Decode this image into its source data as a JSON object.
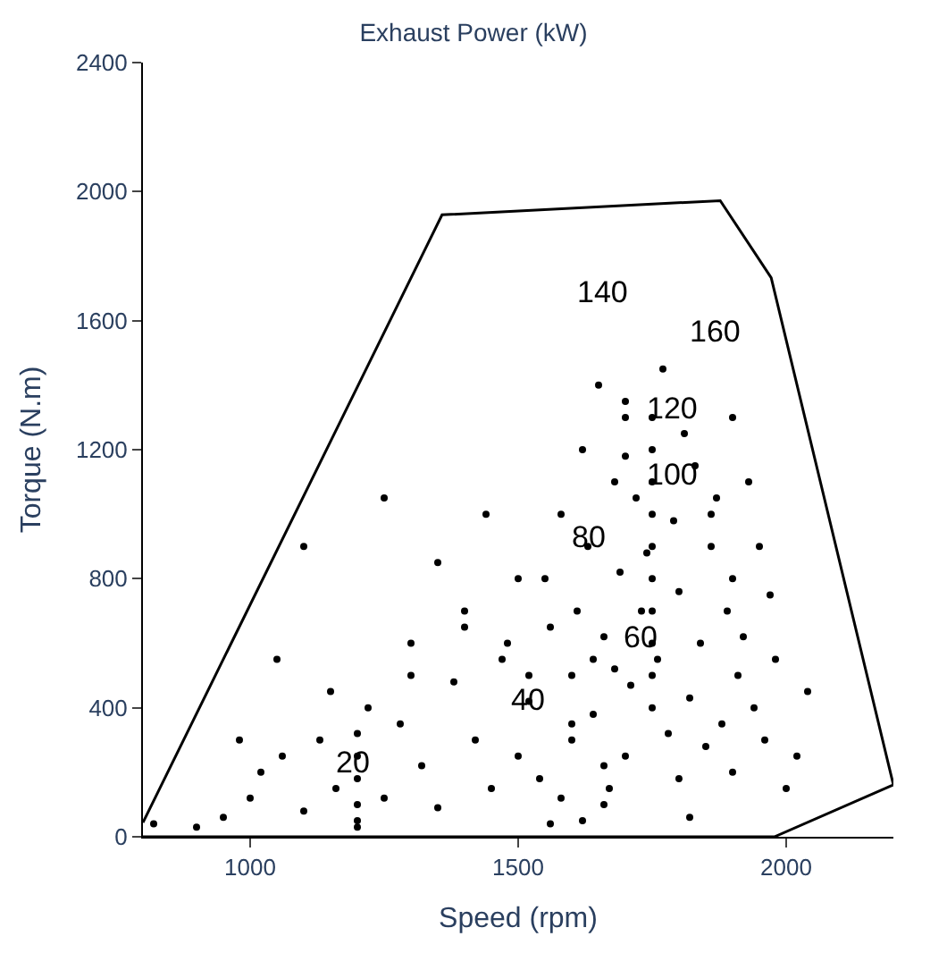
{
  "chart_data": {
    "type": "scatter",
    "title": "Exhaust Power (kW)",
    "xlabel": "Speed (rpm)",
    "ylabel": "Torque (N.m)",
    "xlim": [
      800,
      2200
    ],
    "ylim": [
      0,
      2400
    ],
    "xticks": [
      1000,
      1500,
      2000
    ],
    "yticks": [
      0,
      400,
      800,
      1200,
      1600,
      2000,
      2400
    ],
    "marker": "circle",
    "series": [
      {
        "type": "line",
        "marker": "none",
        "color": "#000000",
        "x": [
          800,
          1358,
          1877,
          1972,
          2200,
          1978,
          800
        ],
        "values": [
          44,
          1928,
          1972,
          1733,
          161,
          0,
          0
        ]
      },
      {
        "color": "#000000",
        "x": [
          820,
          900,
          950,
          1000,
          1020,
          1060,
          1100,
          1130,
          1160,
          1200,
          1200,
          1200,
          1200,
          1200,
          1200,
          1220,
          1250,
          1280,
          1300,
          1320,
          1350,
          1380,
          1400,
          1420,
          1450,
          1470,
          1500,
          1500,
          1520,
          1540,
          1560,
          1580,
          1600,
          1600,
          1610,
          1620,
          1630,
          1640,
          1650,
          1660,
          1670,
          1680,
          1690,
          1700,
          1700,
          1710,
          1720,
          1730,
          1740,
          1750,
          1750,
          1750,
          1750,
          1750,
          1750,
          1750,
          1750,
          1750,
          1750,
          1760,
          1770,
          1780,
          1790,
          1800,
          1800,
          1810,
          1820,
          1830,
          1840,
          1850,
          1860,
          1870,
          1880,
          1890,
          1900,
          1900,
          1910,
          1920,
          1930,
          1940,
          1950,
          1960,
          1970,
          1980,
          2000,
          2020,
          2040,
          1640,
          1660,
          1600,
          1580,
          1550,
          1520,
          1480,
          1440,
          1400,
          1350,
          1300,
          1250,
          1150,
          1100,
          1050,
          980,
          1680,
          1700,
          1820,
          1860,
          1900,
          1620,
          1660,
          1560,
          1700
        ],
        "values": [
          40,
          30,
          60,
          120,
          200,
          250,
          80,
          300,
          150,
          30,
          100,
          180,
          250,
          320,
          50,
          400,
          120,
          350,
          600,
          220,
          90,
          480,
          700,
          300,
          150,
          550,
          250,
          800,
          420,
          180,
          650,
          1000,
          300,
          500,
          700,
          1200,
          900,
          380,
          1400,
          620,
          150,
          1100,
          820,
          250,
          1300,
          470,
          1050,
          700,
          880,
          400,
          500,
          600,
          700,
          800,
          900,
          1000,
          1100,
          1200,
          1300,
          550,
          1450,
          320,
          980,
          180,
          760,
          1250,
          430,
          1150,
          600,
          280,
          900,
          1050,
          350,
          700,
          200,
          800,
          500,
          620,
          1100,
          400,
          900,
          300,
          750,
          550,
          150,
          250,
          450,
          550,
          220,
          350,
          120,
          800,
          500,
          600,
          1000,
          650,
          850,
          500,
          1050,
          450,
          900,
          550,
          300,
          520,
          1350,
          60,
          1000,
          1300,
          50,
          100,
          40,
          1180
        ]
      }
    ],
    "annotations": [
      "20",
      "40",
      "60",
      "80",
      "100",
      "120",
      "140",
      "160"
    ]
  }
}
